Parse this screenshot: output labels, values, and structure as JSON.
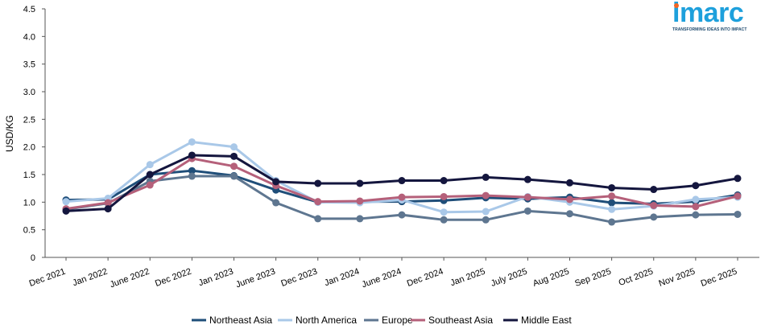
{
  "logo": {
    "name": "imarc",
    "tagline": "TRANSFORMING IDEAS INTO IMPACT"
  },
  "chart_data": {
    "type": "line",
    "title": "",
    "xlabel": "",
    "ylabel": "USD/KG",
    "ylim": [
      0,
      4.5
    ],
    "yticks": [
      "0",
      "0.5",
      "1.0",
      "1.5",
      "2.0",
      "2.5",
      "3.0",
      "3.5",
      "4.0",
      "4.5"
    ],
    "grid": false,
    "legend_position": "bottom",
    "categories": [
      "Dec 2021",
      "Jan 2022",
      "June 2022",
      "Dec 2022",
      "Jan 2023",
      "June 2023",
      "Dec 2023",
      "Jan 2024",
      "June 2024",
      "Dec 2024",
      "Jan 2025",
      "July 2025",
      "Aug 2025",
      "Sep 2025",
      "Oct 2025",
      "Nov 2025",
      "Dec 2025"
    ],
    "series": [
      {
        "name": "Northeast Asia",
        "color": "#1f4e79",
        "values": [
          1.04,
          1.05,
          1.5,
          1.57,
          1.48,
          1.22,
          1.0,
          1.01,
          1.01,
          1.03,
          1.08,
          1.06,
          1.09,
          0.99,
          0.97,
          1.01,
          1.13
        ]
      },
      {
        "name": "North America",
        "color": "#a9c8e8",
        "values": [
          1.01,
          1.07,
          1.68,
          2.09,
          2.0,
          1.39,
          1.0,
          0.99,
          1.04,
          0.82,
          0.83,
          1.1,
          1.0,
          0.87,
          0.93,
          1.05,
          1.09
        ]
      },
      {
        "name": "Europe",
        "color": "#5e7690",
        "values": [
          0.87,
          0.98,
          1.38,
          1.47,
          1.47,
          0.99,
          0.7,
          0.7,
          0.77,
          0.68,
          0.68,
          0.84,
          0.79,
          0.64,
          0.73,
          0.77,
          0.78
        ]
      },
      {
        "name": "Southeast Asia",
        "color": "#b5607a",
        "values": [
          0.88,
          0.99,
          1.31,
          1.79,
          1.65,
          1.3,
          1.01,
          1.02,
          1.09,
          1.1,
          1.12,
          1.09,
          1.05,
          1.11,
          0.94,
          0.92,
          1.11
        ]
      },
      {
        "name": "Middle East",
        "color": "#14163e",
        "values": [
          0.84,
          0.88,
          1.5,
          1.85,
          1.83,
          1.37,
          1.34,
          1.34,
          1.39,
          1.39,
          1.45,
          1.41,
          1.35,
          1.26,
          1.23,
          1.3,
          1.43
        ]
      }
    ]
  }
}
